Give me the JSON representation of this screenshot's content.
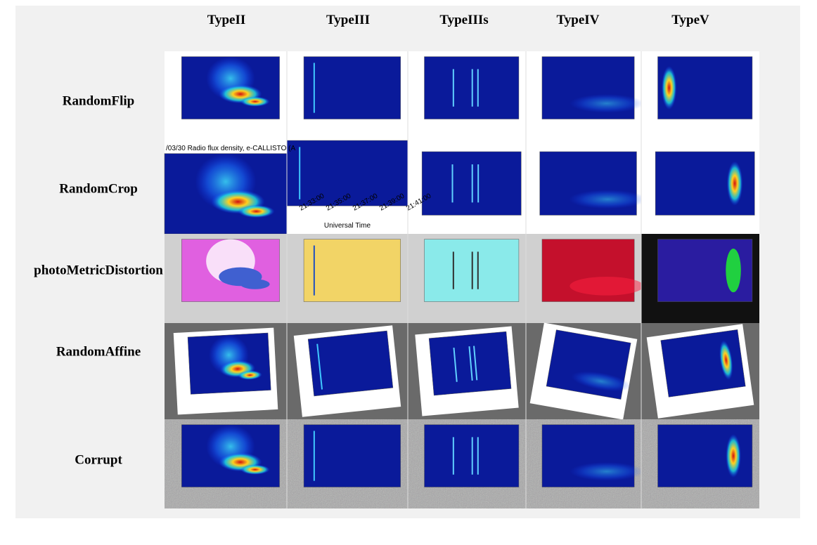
{
  "figure": {
    "columns": [
      "TypeII",
      "TypeIII",
      "TypeIIIs",
      "TypeIV",
      "TypeV"
    ],
    "rows": [
      "RandomFlip",
      "RandomCrop",
      "photoMetricDistortion",
      "RandomAffine",
      "Corrupt"
    ],
    "crop_title": "/03/30  Radio flux density, e-CALLISTO (A",
    "crop_times": [
      "21:33:00",
      "21:35:00",
      "21:37:00",
      "21:39:00",
      "21:41:00"
    ],
    "crop_xlabel": "Universal Time"
  }
}
